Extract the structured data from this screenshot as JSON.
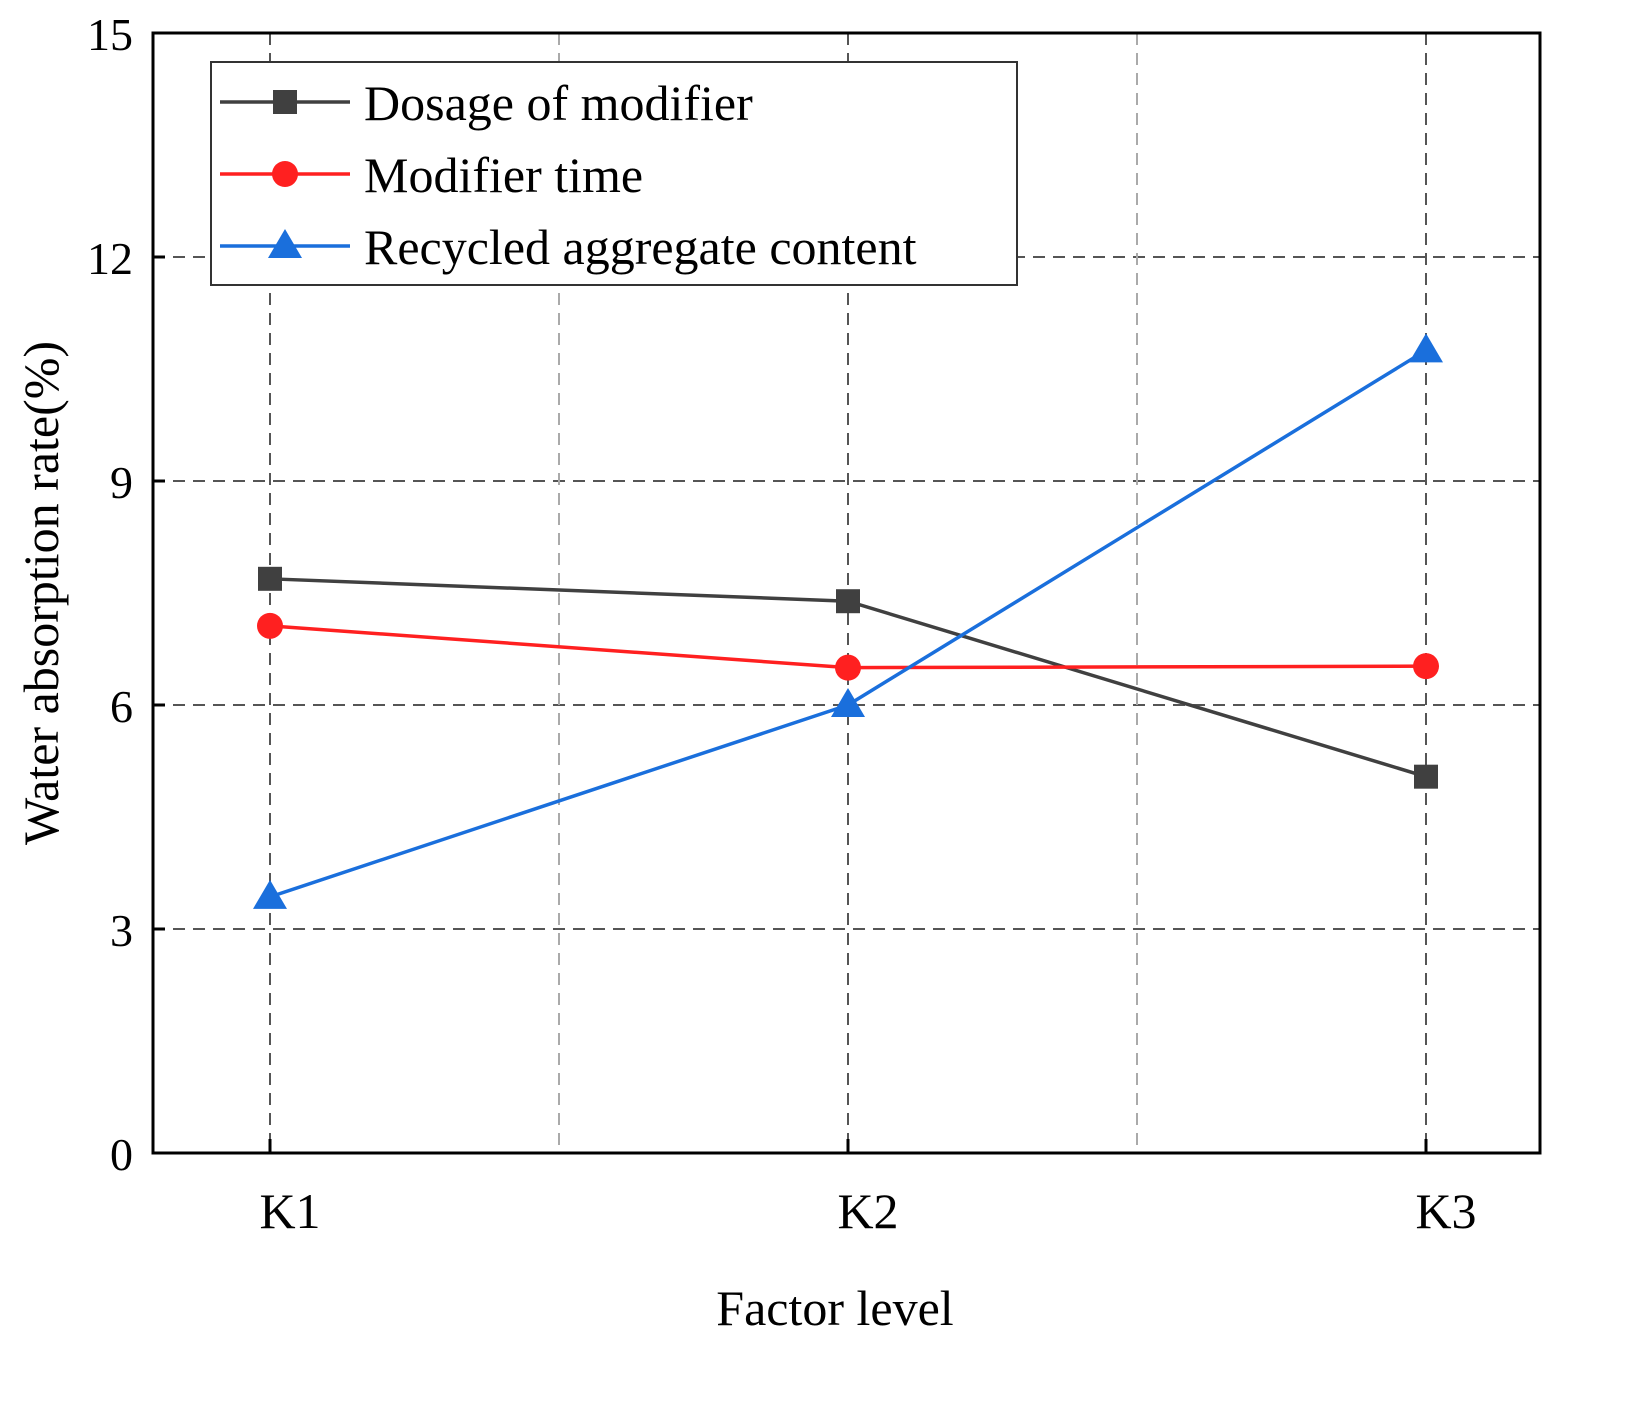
{
  "chart_data": {
    "type": "line",
    "title": "",
    "xlabel": "Factor level",
    "ylabel": "Water absorption rate(%)",
    "categories": [
      "K1",
      "K2",
      "K3"
    ],
    "ylim": [
      0,
      15
    ],
    "yticks": [
      0,
      3,
      6,
      9,
      12,
      15
    ],
    "grid": true,
    "legend_position": "top-left",
    "series": [
      {
        "name": "Dosage of modifier",
        "values": [
          7.69,
          7.39,
          5.04
        ],
        "color": "#404040",
        "marker": "square"
      },
      {
        "name": "Modifier time",
        "values": [
          7.06,
          6.5,
          6.52
        ],
        "color": "#ff2020",
        "marker": "circle"
      },
      {
        "name": "Recycled aggregate content",
        "values": [
          3.43,
          6.0,
          10.75
        ],
        "color": "#1a6fdc",
        "marker": "triangle"
      }
    ]
  }
}
